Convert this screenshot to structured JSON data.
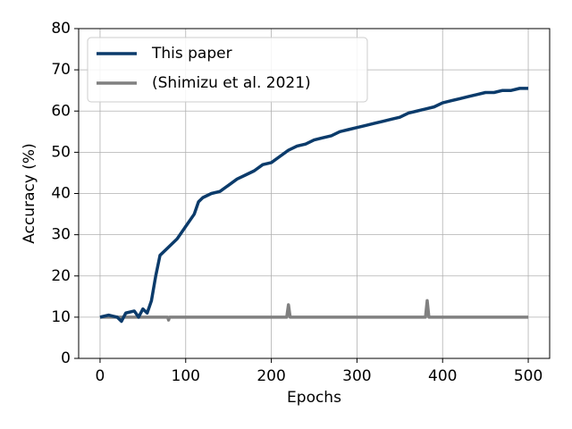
{
  "chart_data": {
    "type": "line",
    "xlabel": "Epochs",
    "ylabel": "Accuracy (%)",
    "xlim": [
      -25,
      525
    ],
    "xticks": [
      0,
      100,
      200,
      300,
      400,
      500
    ],
    "ylim": [
      0,
      80
    ],
    "yticks": [
      0,
      10,
      20,
      30,
      40,
      50,
      60,
      70,
      80
    ],
    "grid": true,
    "legend": "upper left",
    "series": [
      {
        "name": "This paper",
        "color": "#0b3b6b",
        "x": [
          0,
          10,
          20,
          25,
          30,
          40,
          45,
          50,
          55,
          60,
          65,
          70,
          80,
          90,
          100,
          110,
          115,
          120,
          130,
          140,
          150,
          160,
          170,
          180,
          190,
          200,
          210,
          220,
          230,
          240,
          250,
          260,
          270,
          280,
          290,
          300,
          310,
          320,
          330,
          340,
          350,
          360,
          370,
          380,
          390,
          400,
          410,
          420,
          430,
          440,
          450,
          460,
          470,
          480,
          490,
          500
        ],
        "values": [
          10,
          10.5,
          10,
          9,
          11,
          11.5,
          10,
          12,
          11,
          14,
          20,
          25,
          27,
          29,
          32,
          35,
          38,
          39,
          40,
          40.5,
          42,
          43.5,
          44.5,
          45.5,
          47,
          47.5,
          49,
          50.5,
          51.5,
          52,
          53,
          53.5,
          54,
          55,
          55.5,
          56,
          56.5,
          57,
          57.5,
          58,
          58.5,
          59.5,
          60,
          60.5,
          61,
          62,
          62.5,
          63,
          63.5,
          64,
          64.5,
          64.5,
          65,
          65,
          65.5,
          65.5
        ]
      },
      {
        "name": "(Shimizu et al. 2021)",
        "color": "#808080",
        "x": [
          0,
          79,
          80,
          81,
          218,
          220,
          222,
          380,
          382,
          384,
          500
        ],
        "values": [
          10,
          10,
          9.3,
          10,
          10,
          13,
          10,
          10,
          14,
          10,
          10
        ]
      }
    ]
  }
}
